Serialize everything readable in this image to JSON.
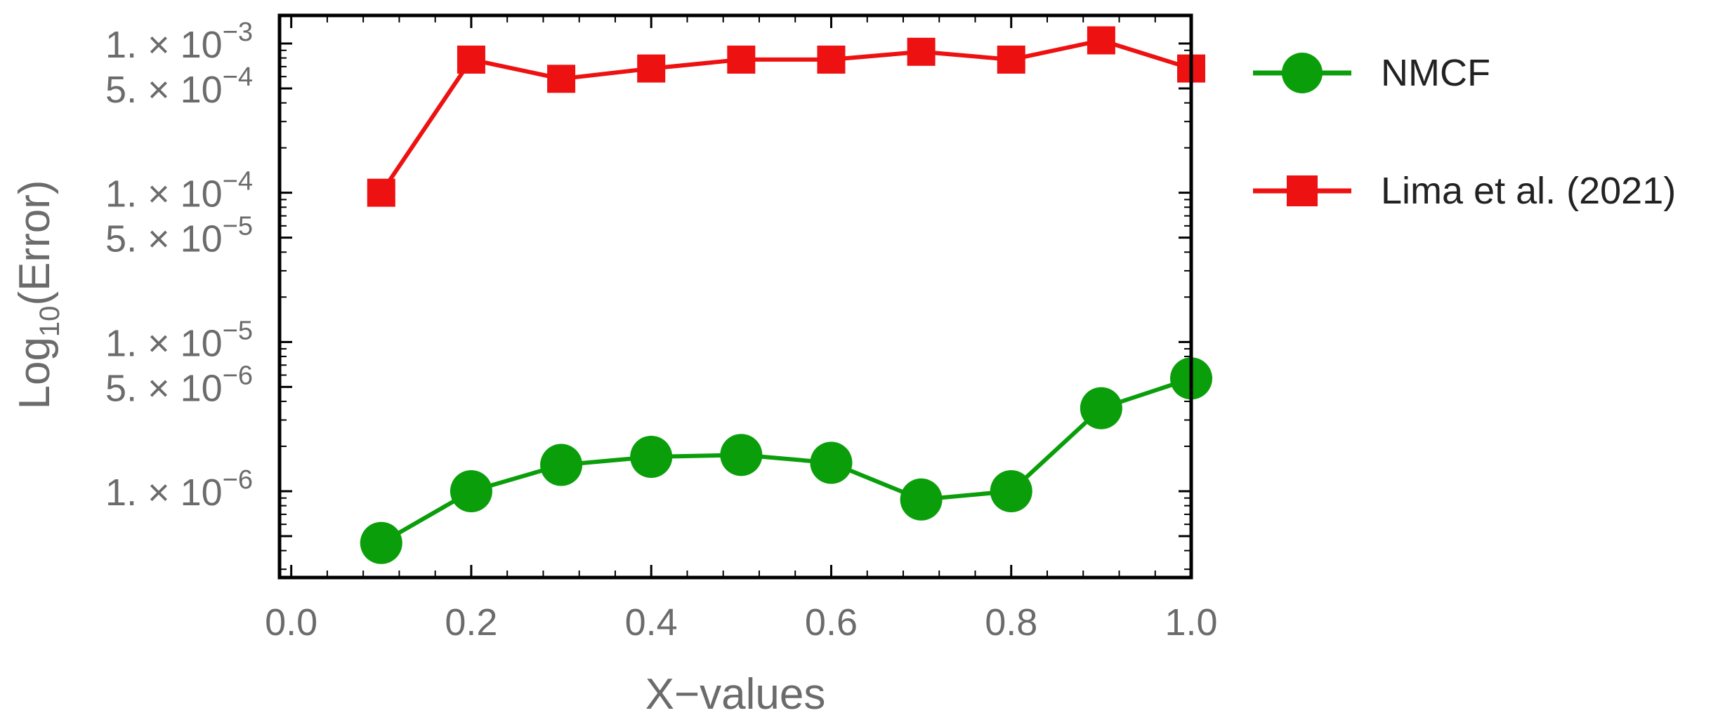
{
  "chart_data": {
    "type": "line",
    "title": "",
    "xlabel": "X−values",
    "ylabel": "Log10(Error)",
    "ylabel_parts": {
      "main": "Log",
      "sub": "10",
      "rest": "(Error)"
    },
    "xlim": [
      0.0,
      1.0
    ],
    "ylim": [
      4e-07,
      0.0014
    ],
    "yscale": "log",
    "x_ticks": [
      "0.0",
      "0.2",
      "0.4",
      "0.6",
      "0.8",
      "1.0"
    ],
    "x_tick_values": [
      0.0,
      0.2,
      0.4,
      0.6,
      0.8,
      1.0
    ],
    "y_ticks": [
      {
        "value": 0.001,
        "mantissa": "1.",
        "exponent": "−3"
      },
      {
        "value": 0.0005,
        "mantissa": "5.",
        "exponent": "−4"
      },
      {
        "value": 0.0001,
        "mantissa": "1.",
        "exponent": "−4"
      },
      {
        "value": 5e-05,
        "mantissa": "5.",
        "exponent": "−5"
      },
      {
        "value": 1e-05,
        "mantissa": "1.",
        "exponent": "−5"
      },
      {
        "value": 5e-06,
        "mantissa": "5.",
        "exponent": "−6"
      },
      {
        "value": 1e-06,
        "mantissa": "1.",
        "exponent": "−6"
      }
    ],
    "legend_position": "right",
    "grid": false,
    "x": [
      0.1,
      0.2,
      0.3,
      0.4,
      0.5,
      0.6,
      0.7,
      0.8,
      0.9,
      1.0
    ],
    "series": [
      {
        "name": "NMCF",
        "marker": "circle",
        "color": "#0a9e0a",
        "values": [
          4.5e-07,
          1e-06,
          1.5e-06,
          1.7e-06,
          1.75e-06,
          1.55e-06,
          8.8e-07,
          1e-06,
          3.6e-06,
          5.7e-06
        ]
      },
      {
        "name": "Lima et al. (2021)",
        "marker": "square",
        "color": "#ee1111",
        "values": [
          0.0001,
          0.00078,
          0.00058,
          0.00068,
          0.00078,
          0.00078,
          0.00088,
          0.00078,
          0.00105,
          0.00068
        ]
      }
    ]
  }
}
